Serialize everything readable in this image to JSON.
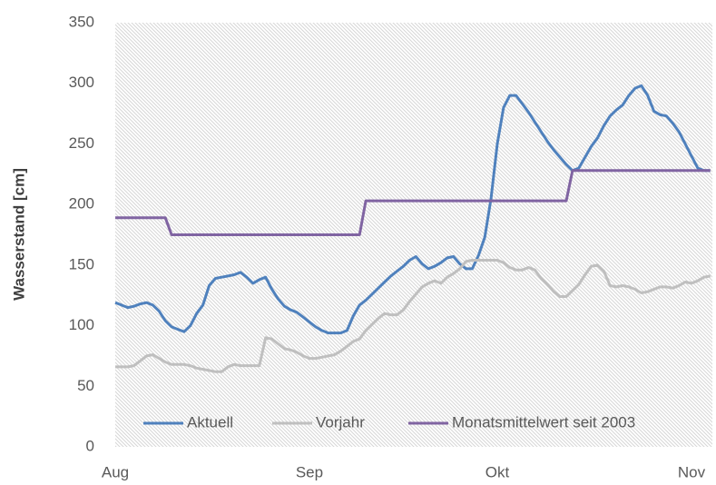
{
  "chart_data": {
    "type": "line",
    "y_label": "Wasserstand [cm]",
    "categories": [
      "Aug",
      null,
      null,
      null,
      null,
      null,
      null,
      null,
      null,
      null,
      null,
      null,
      null,
      null,
      null,
      null,
      null,
      null,
      null,
      null,
      null,
      null,
      null,
      null,
      null,
      null,
      null,
      null,
      null,
      null,
      null,
      "Sep",
      null,
      null,
      null,
      null,
      null,
      null,
      null,
      null,
      null,
      null,
      null,
      null,
      null,
      null,
      null,
      null,
      null,
      null,
      null,
      null,
      null,
      null,
      null,
      null,
      null,
      null,
      null,
      null,
      null,
      "Okt",
      null,
      null,
      null,
      null,
      null,
      null,
      null,
      null,
      null,
      null,
      null,
      null,
      null,
      null,
      null,
      null,
      null,
      null,
      null,
      null,
      null,
      null,
      null,
      null,
      null,
      null,
      null,
      null,
      null,
      null,
      "Nov",
      null,
      null,
      null
    ],
    "series": [
      {
        "name": "Aktuell",
        "color": "#4f81bd",
        "values": [
          119,
          117,
          115,
          116,
          118,
          119,
          117,
          112,
          104,
          99,
          97,
          95,
          100,
          110,
          117,
          133,
          139,
          140,
          141,
          142,
          144,
          140,
          135,
          138,
          140,
          130,
          122,
          116,
          113,
          111,
          107,
          103,
          99,
          96,
          94,
          94,
          94,
          96,
          108,
          117,
          121,
          126,
          131,
          136,
          141,
          145,
          149,
          154,
          157,
          151,
          147,
          149,
          152,
          156,
          157,
          151,
          147,
          147,
          158,
          173,
          205,
          250,
          280,
          290,
          290,
          283,
          276,
          268,
          260,
          252,
          245,
          239,
          233,
          228,
          230,
          239,
          248,
          255,
          265,
          273,
          278,
          282,
          290,
          296,
          298,
          290,
          277,
          274,
          273,
          267,
          260,
          250,
          240,
          230,
          228,
          228
        ]
      },
      {
        "name": "Vorjahr",
        "color": "#bfbfbf",
        "values": [
          66,
          66,
          66,
          67,
          71,
          75,
          76,
          73,
          70,
          68,
          68,
          68,
          67,
          65,
          64,
          63,
          62,
          62,
          66,
          68,
          67,
          67,
          67,
          67,
          90,
          89,
          85,
          81,
          80,
          78,
          75,
          73,
          73,
          74,
          75,
          76,
          79,
          83,
          87,
          89,
          96,
          101,
          106,
          110,
          109,
          109,
          113,
          120,
          126,
          132,
          135,
          137,
          135,
          140,
          143,
          147,
          153,
          154,
          154,
          154,
          154,
          154,
          152,
          148,
          146,
          146,
          148,
          146,
          139,
          134,
          128,
          124,
          124,
          129,
          134,
          142,
          149,
          150,
          145,
          133,
          132,
          133,
          132,
          130,
          127,
          128,
          130,
          132,
          132,
          131,
          133,
          136,
          135,
          137,
          140,
          141
        ]
      },
      {
        "name": "Monatsmittelwert seit 2003",
        "color": "#8064a2",
        "values": [
          189,
          189,
          189,
          189,
          189,
          189,
          189,
          189,
          189,
          175,
          175,
          175,
          175,
          175,
          175,
          175,
          175,
          175,
          175,
          175,
          175,
          175,
          175,
          175,
          175,
          175,
          175,
          175,
          175,
          175,
          175,
          175,
          175,
          175,
          175,
          175,
          175,
          175,
          175,
          175,
          203,
          203,
          203,
          203,
          203,
          203,
          203,
          203,
          203,
          203,
          203,
          203,
          203,
          203,
          203,
          203,
          203,
          203,
          203,
          203,
          203,
          203,
          203,
          203,
          203,
          203,
          203,
          203,
          203,
          203,
          203,
          203,
          203,
          228,
          228,
          228,
          228,
          228,
          228,
          228,
          228,
          228,
          228,
          228,
          228,
          228,
          228,
          228,
          228,
          228,
          228,
          228,
          228,
          228,
          228,
          228
        ]
      }
    ],
    "ylim": [
      0,
      350
    ],
    "yticks": [
      0,
      50,
      100,
      150,
      200,
      250,
      300,
      350
    ],
    "grid": false,
    "legend": "bottom"
  }
}
